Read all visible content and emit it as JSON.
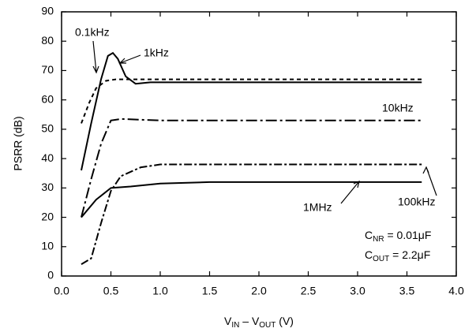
{
  "chart_data": {
    "type": "line",
    "y_label": "PSRR (dB)",
    "x_label": {
      "main": "V",
      "sub1": "IN",
      "mid": " – V",
      "sub2": "OUT",
      "end": " (V)"
    },
    "annotations": [
      {
        "main": "C",
        "sub": "NR",
        "rest": " = 0.01μF"
      },
      {
        "main": "C",
        "sub": "OUT",
        "rest": " = 2.2μF"
      }
    ],
    "xlim": [
      0,
      4
    ],
    "ylim": [
      0,
      90
    ],
    "xticks": [
      {
        "value": 0,
        "label": "0.0"
      },
      0.5,
      {
        "value": 1,
        "label": "1.0"
      },
      1.5,
      {
        "value": 2,
        "label": "2.0"
      },
      2.5,
      {
        "value": 3,
        "label": "3.0"
      },
      3.5,
      {
        "value": 4,
        "label": "4.0"
      }
    ],
    "yticks": [
      0,
      10,
      20,
      30,
      40,
      50,
      60,
      70,
      80,
      90
    ],
    "series": [
      {
        "name": "0.1kHz",
        "color": "#000000",
        "dash": "5,4",
        "x": [
          0.2,
          0.28,
          0.35,
          0.45,
          0.55,
          1.0,
          3.65
        ],
        "values": [
          52,
          59,
          64,
          66.5,
          67,
          67,
          67
        ]
      },
      {
        "name": "1kHz",
        "color": "#000000",
        "dash": "none",
        "x": [
          0.2,
          0.3,
          0.4,
          0.47,
          0.52,
          0.57,
          0.65,
          0.75,
          0.9,
          3.65
        ],
        "values": [
          36,
          52,
          67,
          75,
          76,
          74,
          68,
          65.5,
          66,
          66
        ]
      },
      {
        "name": "10kHz",
        "color": "#000000",
        "dash": "14,4,3,4",
        "x": [
          0.2,
          0.3,
          0.4,
          0.5,
          0.6,
          1.0,
          3.65
        ],
        "values": [
          20,
          33,
          45,
          53,
          53.5,
          53,
          53
        ]
      },
      {
        "name": "100kHz",
        "color": "#000000",
        "dash": "10,3,3,3",
        "x": [
          0.2,
          0.3,
          0.4,
          0.5,
          0.6,
          0.8,
          1.0,
          1.5,
          3.65
        ],
        "values": [
          4,
          6,
          18,
          29,
          34,
          37,
          38,
          38,
          38
        ]
      },
      {
        "name": "1MHz",
        "color": "#000000",
        "dash": "none",
        "x": [
          0.2,
          0.35,
          0.5,
          0.7,
          1.0,
          1.5,
          3.65
        ],
        "values": [
          20,
          26,
          30,
          30.5,
          31.5,
          32,
          32
        ]
      }
    ]
  }
}
